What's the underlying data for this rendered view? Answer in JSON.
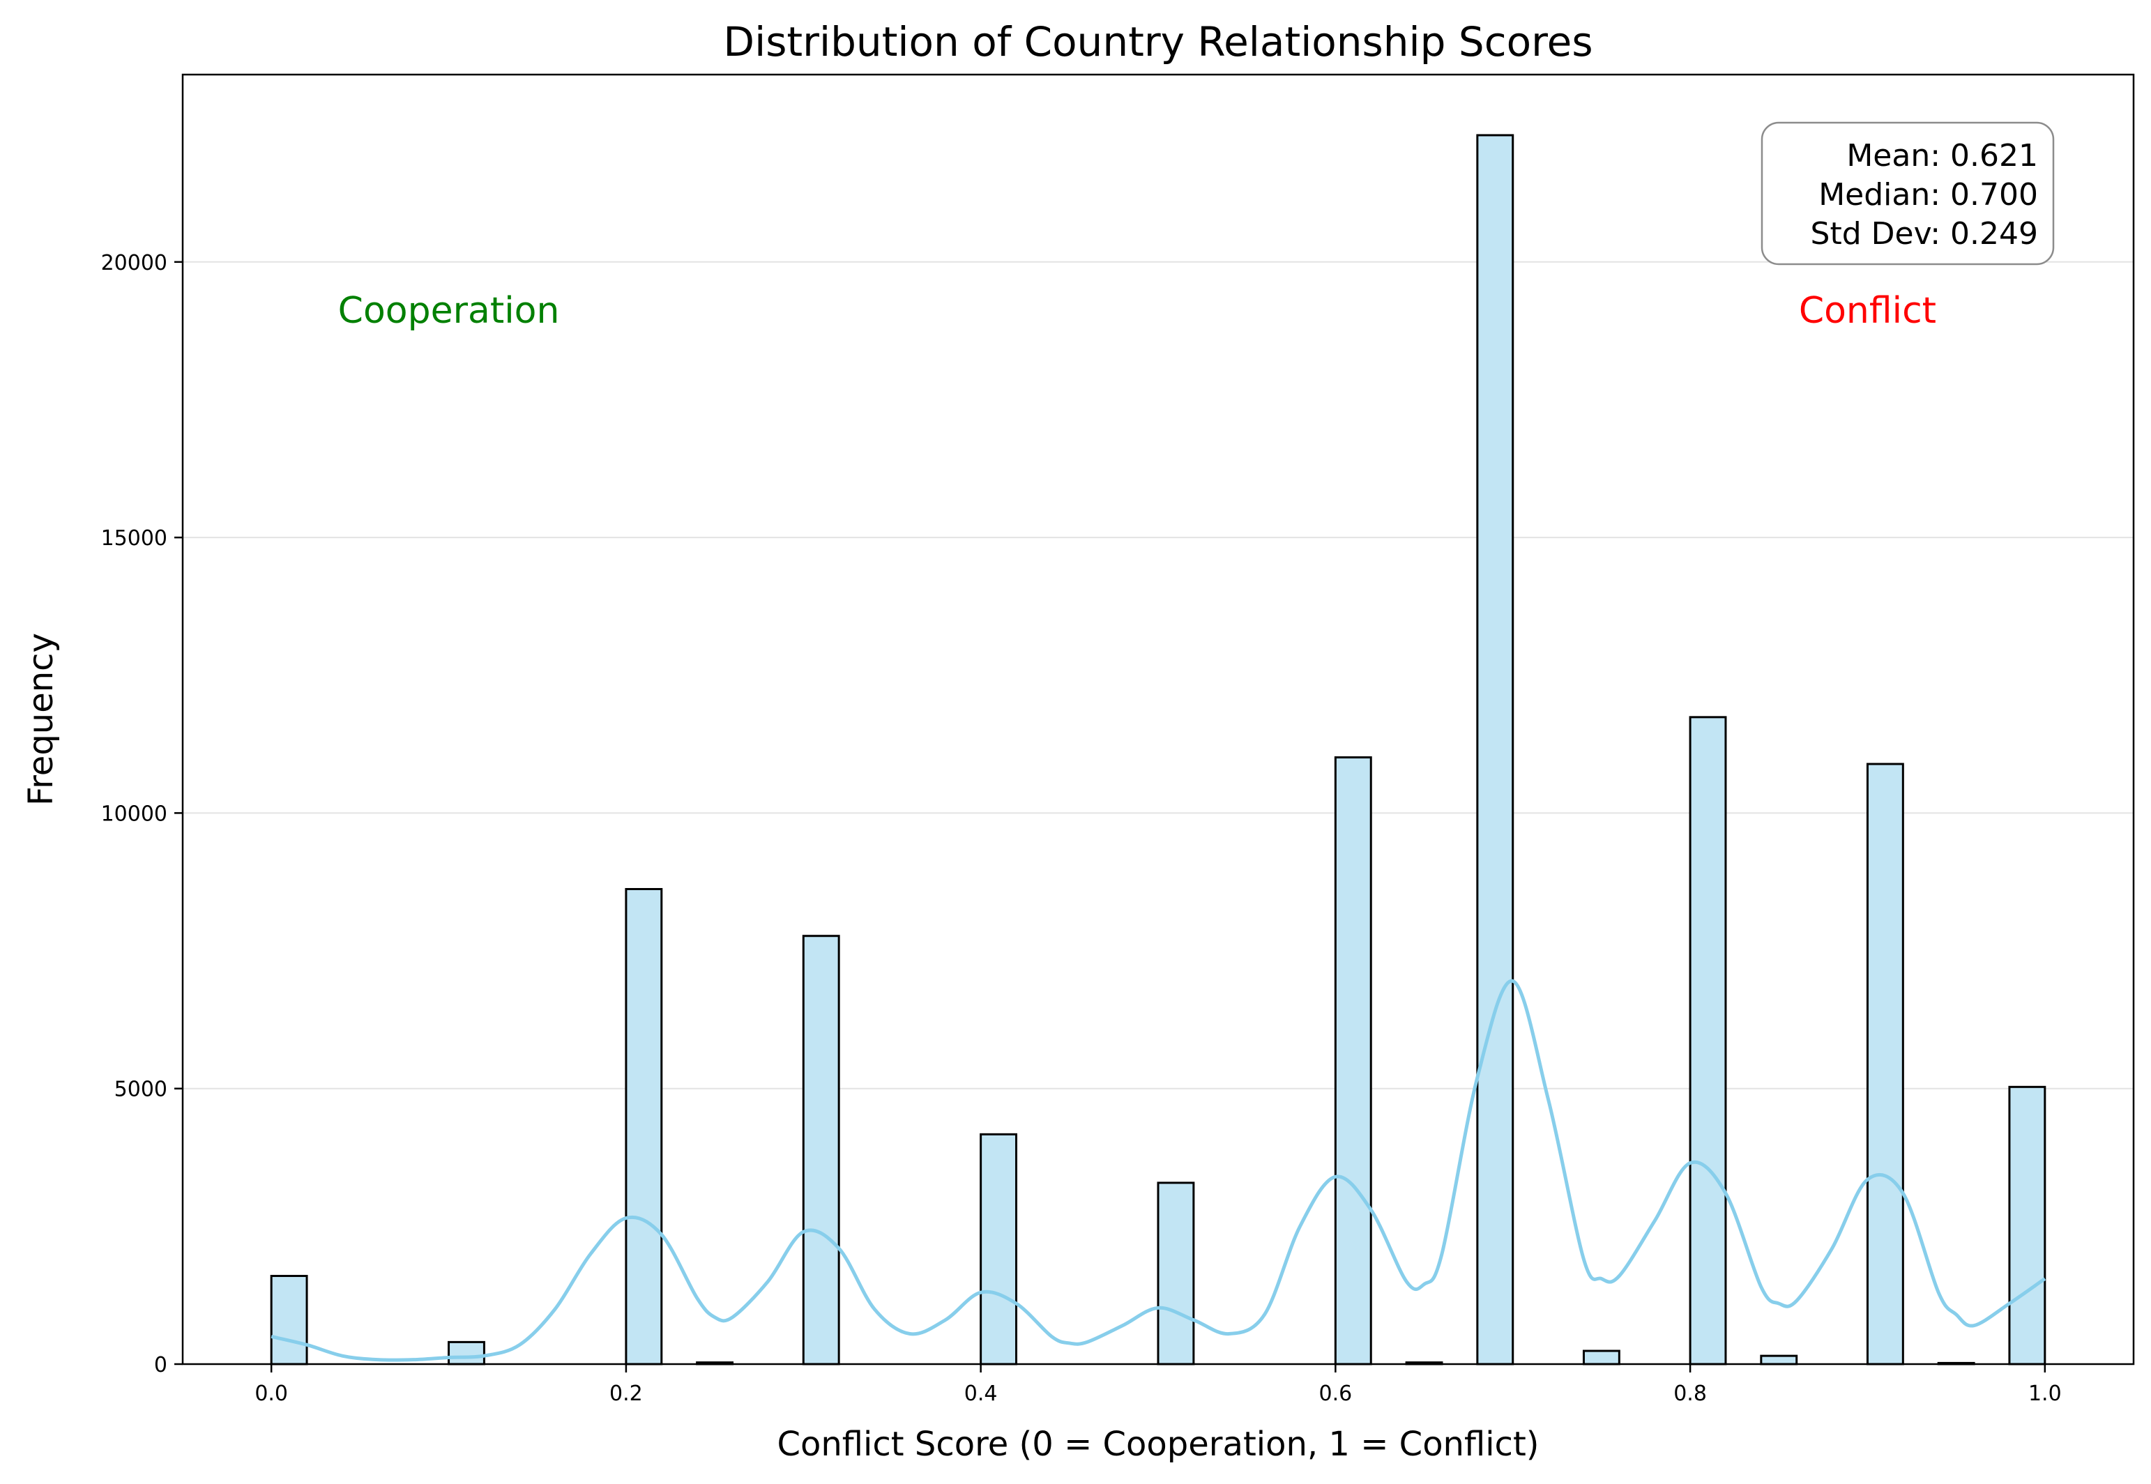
{
  "chart_data": {
    "type": "bar",
    "title": "Distribution of Country Relationship Scores",
    "xlabel": "Conflict Score (0 = Cooperation, 1 = Conflict)",
    "ylabel": "Frequency",
    "xlim": [
      -0.05,
      1.05
    ],
    "ylim": [
      0,
      23400
    ],
    "xticks": [
      "0.0",
      "0.2",
      "0.4",
      "0.6",
      "0.8",
      "1.0"
    ],
    "xtick_values": [
      0.0,
      0.2,
      0.4,
      0.6,
      0.8,
      1.0
    ],
    "yticks": [
      "0",
      "5000",
      "10000",
      "15000",
      "20000"
    ],
    "ytick_values": [
      0,
      5000,
      10000,
      15000,
      20000
    ],
    "grid": "y",
    "bar_color": "#c2e5f4",
    "bar_edge_color": "#000000",
    "kde_color": "#87ceeb",
    "bins": [
      {
        "x0": 0.0,
        "x1": 0.02,
        "value": 1600
      },
      {
        "x0": 0.1,
        "x1": 0.12,
        "value": 400
      },
      {
        "x0": 0.2,
        "x1": 0.22,
        "value": 8620
      },
      {
        "x0": 0.24,
        "x1": 0.26,
        "value": 30
      },
      {
        "x0": 0.3,
        "x1": 0.32,
        "value": 7770
      },
      {
        "x0": 0.4,
        "x1": 0.42,
        "value": 4170
      },
      {
        "x0": 0.5,
        "x1": 0.52,
        "value": 3290
      },
      {
        "x0": 0.6,
        "x1": 0.62,
        "value": 11010
      },
      {
        "x0": 0.64,
        "x1": 0.66,
        "value": 30
      },
      {
        "x0": 0.68,
        "x1": 0.7,
        "value": 22300
      },
      {
        "x0": 0.74,
        "x1": 0.76,
        "value": 240
      },
      {
        "x0": 0.8,
        "x1": 0.82,
        "value": 11740
      },
      {
        "x0": 0.84,
        "x1": 0.86,
        "value": 150
      },
      {
        "x0": 0.9,
        "x1": 0.92,
        "value": 10890
      },
      {
        "x0": 0.94,
        "x1": 0.96,
        "value": 20
      },
      {
        "x0": 0.98,
        "x1": 1.0,
        "value": 5030
      }
    ],
    "kde": {
      "x": [
        0.0,
        0.02,
        0.04,
        0.06,
        0.08,
        0.1,
        0.12,
        0.14,
        0.16,
        0.18,
        0.2,
        0.22,
        0.24,
        0.25,
        0.26,
        0.28,
        0.3,
        0.32,
        0.34,
        0.36,
        0.38,
        0.4,
        0.42,
        0.44,
        0.45,
        0.46,
        0.48,
        0.5,
        0.52,
        0.54,
        0.56,
        0.58,
        0.6,
        0.62,
        0.64,
        0.65,
        0.66,
        0.68,
        0.7,
        0.72,
        0.74,
        0.75,
        0.76,
        0.78,
        0.8,
        0.82,
        0.84,
        0.85,
        0.86,
        0.88,
        0.9,
        0.92,
        0.94,
        0.95,
        0.96,
        0.98,
        1.0
      ],
      "y": [
        500,
        350,
        150,
        80,
        80,
        120,
        150,
        350,
        1000,
        2000,
        2650,
        2350,
        1200,
        850,
        850,
        1500,
        2400,
        2100,
        1000,
        550,
        800,
        1300,
        1100,
        500,
        380,
        400,
        700,
        1020,
        800,
        550,
        900,
        2500,
        3400,
        2800,
        1500,
        1450,
        2000,
        5200,
        6950,
        4800,
        1900,
        1550,
        1600,
        2600,
        3650,
        3100,
        1400,
        1100,
        1150,
        2100,
        3350,
        3100,
        1300,
        900,
        700,
        1100,
        1550
      ]
    },
    "annotations": [
      {
        "text": "Cooperation",
        "x": 0.1,
        "y": 18900,
        "color": "#008000"
      },
      {
        "text": "Conflict",
        "x": 0.9,
        "y": 18900,
        "color": "#ff0000"
      }
    ],
    "stats_box": {
      "mean": "Mean: 0.621",
      "median": "Median: 0.700",
      "std": "Std Dev: 0.249"
    }
  }
}
